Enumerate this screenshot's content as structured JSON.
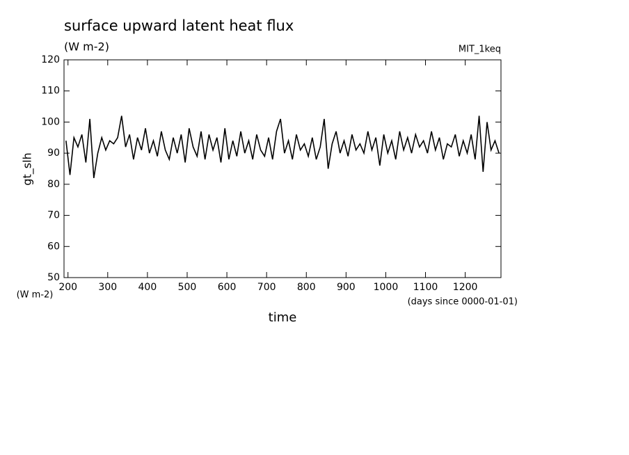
{
  "chart_data": {
    "type": "line",
    "title": "surface upward latent heat flux",
    "subtitle": "(W m-2)",
    "annotation": "MIT_1keq",
    "y_label": "gt_slh",
    "y_units": "(W m-2)",
    "x_label": "time",
    "x_units": "(days since 0000-01-01)",
    "xlim": [
      190,
      1290
    ],
    "ylim": [
      50,
      120
    ],
    "xticks": [
      200,
      300,
      400,
      500,
      600,
      700,
      800,
      900,
      1000,
      1100,
      1200
    ],
    "yticks": [
      50,
      60,
      70,
      80,
      90,
      100,
      110,
      120
    ],
    "x": [
      195,
      205,
      215,
      225,
      235,
      245,
      255,
      265,
      275,
      285,
      295,
      305,
      315,
      325,
      335,
      345,
      355,
      365,
      375,
      385,
      395,
      405,
      415,
      425,
      435,
      445,
      455,
      465,
      475,
      485,
      495,
      505,
      515,
      525,
      535,
      545,
      555,
      565,
      575,
      585,
      595,
      605,
      615,
      625,
      635,
      645,
      655,
      665,
      675,
      685,
      695,
      705,
      715,
      725,
      735,
      745,
      755,
      765,
      775,
      785,
      795,
      805,
      815,
      825,
      835,
      845,
      855,
      865,
      875,
      885,
      895,
      905,
      915,
      925,
      935,
      945,
      955,
      965,
      975,
      985,
      995,
      1005,
      1015,
      1025,
      1035,
      1045,
      1055,
      1065,
      1075,
      1085,
      1095,
      1105,
      1115,
      1125,
      1135,
      1145,
      1155,
      1165,
      1175,
      1185,
      1195,
      1205,
      1215,
      1225,
      1235,
      1245,
      1255,
      1265,
      1275,
      1285
    ],
    "series": [
      {
        "name": "gt_slh",
        "color": "#000000",
        "values": [
          94,
          83,
          95,
          92,
          96,
          87,
          101,
          82,
          90,
          95,
          91,
          94,
          93,
          95,
          102,
          92,
          96,
          88,
          95,
          91,
          98,
          90,
          94,
          89,
          97,
          91,
          88,
          95,
          90,
          96,
          87,
          98,
          92,
          89,
          97,
          88,
          96,
          91,
          95,
          87,
          98,
          88,
          94,
          89,
          97,
          90,
          94,
          88,
          96,
          91,
          89,
          95,
          88,
          97,
          101,
          90,
          94,
          88,
          96,
          91,
          93,
          89,
          95,
          88,
          92,
          101,
          85,
          93,
          97,
          90,
          94,
          89,
          96,
          91,
          93,
          90,
          97,
          91,
          95,
          86,
          96,
          90,
          94,
          88,
          97,
          91,
          95,
          90,
          96,
          92,
          94,
          90,
          97,
          91,
          95,
          88,
          93,
          92,
          96,
          89,
          94,
          90,
          96,
          88,
          102,
          84,
          100,
          91,
          94,
          90
        ]
      }
    ]
  }
}
